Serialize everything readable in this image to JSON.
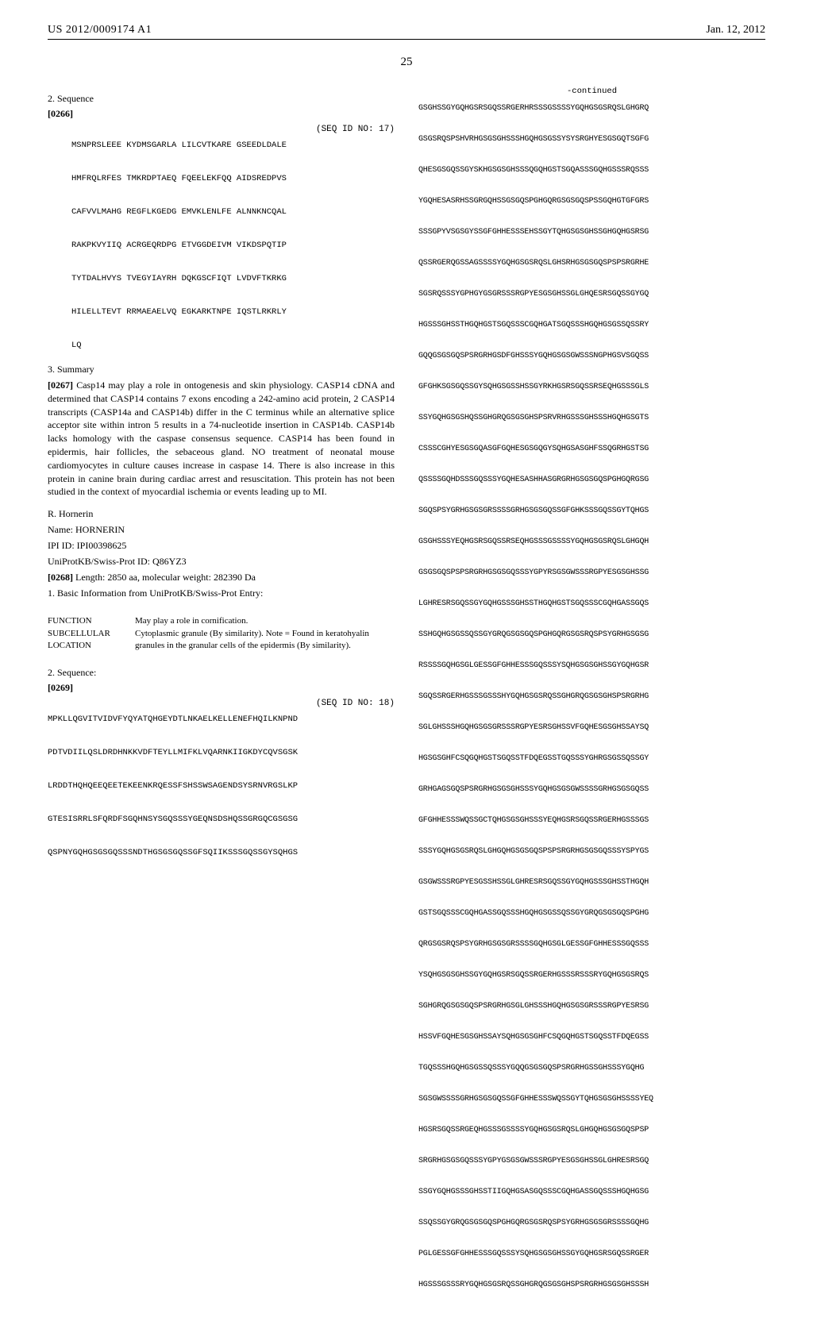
{
  "header": {
    "pub_number": "US 2012/0009174 A1",
    "pub_date": "Jan. 12, 2012",
    "page_num": "25"
  },
  "left": {
    "section2_title": "2. Sequence",
    "para0266": "[0266]",
    "seq17_label": "(SEQ ID NO: 17)",
    "seq17": "MSNPRSLEEE KYDMSGARLA LILCVTKARE GSEEDLDALE\n\nHMFRQLRFES TMKRDPTAEQ FQEELEKFQQ AIDSREDPVS\n\nCAFVVLMAHG REGFLKGEDG EMVKLENLFE ALNNKNCQAL\n\nRAKPKVYIIQ ACRGEQRDPG ETVGGDEIVM VIKDSPQTIP\n\nTYTDALHVYS TVEGYIAYRH DQKGSCFIQT LVDVFTKRKG\n\nHILELLTEVT RRMAEAELVQ EGKARKTNPE IQSTLRKRLY\n\nLQ",
    "section3_title": "3. Summary",
    "para0267_num": "[0267]",
    "summary0267": "Casp14 may play a role in ontogenesis and skin physiology. CASP14 cDNA and determined that CASP14 contains 7 exons encoding a 242-amino acid protein, 2 CASP14 transcripts (CASP14a and CASP14b) differ in the C terminus while an alternative splice acceptor site within intron 5 results in a 74-nucleotide insertion in CASP14b. CASP14b lacks homology with the caspase consensus sequence. CASP14 has been found in epidermis, hair follicles, the sebaceous gland. NO treatment of neonatal mouse cardiomyocytes in culture causes increase in caspase 14. There is also increase in this protein in canine brain during cardiac arrest and resuscitation. This protein has not been studied in the context of myocardial ischemia or events leading up to MI.",
    "protein_r": "R. Hornerin",
    "protein_name": "Name: HORNERIN",
    "ipi_id": "IPI ID: IPI00398625",
    "uniprot_id": "UniProtKB/Swiss-Prot ID: Q86YZ3",
    "para0268_num": "[0268]",
    "para0268_text": "Length: 2850 aa, molecular weight: 282390 Da",
    "basic_info_line": "1. Basic Information from UniProtKB/Swiss-Prot Entry:",
    "function_table": [
      {
        "label": "FUNCTION",
        "value": "May play a role in cornification."
      },
      {
        "label": "SUBCELLULAR LOCATION",
        "value": "Cytoplasmic granule (By similarity). Note = Found in keratohyalin granules in the granular cells of the epidermis (By similarity)."
      }
    ],
    "section2b_title": "2. Sequence:",
    "para0269": "[0269]",
    "seq18_label": "(SEQ ID NO: 18)",
    "seq18": "MPKLLQGVITVIDVFYQYATQHGEYDTLNKAELKELLENEFHQILKNPND\n\nPDTVDIILQSLDRDHNKKVDFTEYLLMIFKLVQARNKIIGKDYCQVSGSK\n\nLRDDTHQHQEEQEETEKEENKRQESSFSHSSWSAGENDSYSRNVRGSLKP\n\nGTESISRRLSFQRDFSGQHNSYSGQSSSYGEQNSDSHQSSGRGQCGSGSG\n\nQSPNYGQHGSGSGQSSSNDTHGSGSGQSSGFSQIIKSSSGQSSGYSQHGS"
  },
  "right": {
    "continued_label": "-continued",
    "seq_continued": "GSGHSSGYGQHGSRSGQSSRGERHRSSSGSSSSYGQHGSGSRQSLGHGRQ\n\nGSGSRQSPSHVRHGSGSGHSSSHGQHGSGSSYSYSRGHYESGSGQTSGFG\n\nQHESGSGQSSGYSKHGSGSGHSSSQGQHGSTSGQASSSGQHGSSSRQSSS\n\nYGQHESASRHSSGRGQHSSGSGQSPGHGQRGSGSGQSPSSGQHGTGFGRS\n\nSSSGPYVSGSGYSSGFGHHESSSEHSSGYTQHGSGSGHSSGHGQHGSRSG\n\nQSSRGERQGSSAGSSSSYGQHGSGSRQSLGHSRHGSGSGQSPSPSRGRHE\n\nSGSRQSSSYGPHGYGSGRSSSRGPYESGSGHSSGLGHQESRSGQSSGYGQ\n\nHGSSSGHSSTHGQHGSTSGQSSSCGQHGATSGQSSSHGQHGSGSSQSSRY\n\nGQQGSGSGQSPSRGRHGSDFGHSSSYGQHGSGSGWSSSNGPHGSVSGQSS\n\nGFGHKSGSGQSSGYSQHGSGSSHSSGYRKHGSRSGQSSRSEQHGSSSGLS\n\nSSYGQHGSGSHQSSGHGRQGSGSGHSPSRVRHGSSSGHSSSHGQHGSGTS\n\nCSSSCGHYESGSGQASGFGQHESGSGQGYSQHGSASGHFSSQGRHGSTSG\n\nQSSSSGQHDSSSGQSSSYGQHESASHHASGRGRHGSGSGQSPGHGQRGSG\n\nSGQSPSYGRHGSGSGRSSSSGRHGSGSGQSSGFGHKSSSGQSSGYTQHGS\n\nGSGHSSSYEQHGSRSGQSSRSEQHGSSSGSSSSYGQHGSGSRQSLGHGQH\n\nGSGSGQSPSPSRGRHGSGSGQSSSYGPYRSGSGWSSSRGPYESGSGHSSG\n\nLGHRESRSGQSSGYGQHGSSSGHSSTHGQHGSTSGQSSSCGQHGASSGQS\n\nSSHGQHGSGSSQSSGYGRQGSGSGQSPGHGQRGSGSRQSPSYGRHGSGSG\n\nRSSSSGQHGSGLGESSGFGHHESSSGQSSSYSQHGSGSGHSSGYGQHGSR\n\nSGQSSRGERHGSSSGSSSHYGQHGSGSRQSSGHGRQGSGSGHSPSRGRHG\n\nSGLGHSSSHGQHGSGSGRSSSRGPYESRSGHSSVFGQHESGSGHSSAYSQ\n\nHGSGSGHFCSQGQHGSTSGQSSTFDQEGSSTGQSSSYGHRGSGSSQSSGY\n\nGRHGAGSGQSPSRGRHGSGSGHSSSYGQHGSGSGWSSSSGRHGSGSGQSS\n\nGFGHHESSSWQSSGCTQHGSGSGHSSSYEQHGSRSGQSSRGERHGSSSGS\n\nSSSYGQHGSGSRQSLGHGQHGSGSGQSPSPSRGRHGSGSGQSSSYSPYGS\n\nGSGWSSSRGPYESGSSHSSGLGHRESRSGQSSGYGQHGSSSGHSSTHGQH\n\nGSTSGQSSSCGQHGASSGQSSSHGQHGSGSSQSSGYGRQGSGSGQSPGHG\n\nQRGSGSRQSPSYGRHGSGSGRSSSSGQHGSGLGESSGFGHHESSSGQSSS\n\nYSQHGSGSGHSSGYGQHGSRSGQSSRGERHGSSSRSSSRYGQHGSGSRQS\n\nSGHGRQGSGSGQSPSRGRHGSGLGHSSSHGQHGSGSGRSSSRGPYESRSG\n\nHSSVFGQHESGSGHSSAYSQHGSGSGHFCSQGQHGSTSGQSSTFDQEGSS\n\nTGQSSSHGQHGSGSSQSSSYGQQGSGSGQSPSRGRHGSSGHSSSYGQHG\n\nSGSGWSSSSGRHGSGSGQSSGFGHHESSSWQSSGYTQHGSGSGHSSSSYEQ\n\nHGSRSGQSSRGEQHGSSSGSSSSYGQHGSGSRQSLGHGQHGSGSGQSPSP\n\nSRGRHGSGSGQSSSYGPYGSGSGWSSSRGPYESGSGHSSGLGHRESRSGQ\n\nSSGYGQHGSSSGHSSTIIGQHGSASGQSSSCGQHGASSGQSSSHGQHGSG\n\nSSQSSGYGRQGSGSGQSPGHGQRGSGSRQSPSYGRHGSGSGRSSSSGQHG\n\nPGLGESSGFGHHESSSGQSSSYSQHGSGSGHSSGYGQHGSRSGQSSRGER\n\nHGSSSGSSSRYGQHGSGSRQSSGHGRQGSGSGHSPSRGRHGSGSGHSSSH"
  }
}
